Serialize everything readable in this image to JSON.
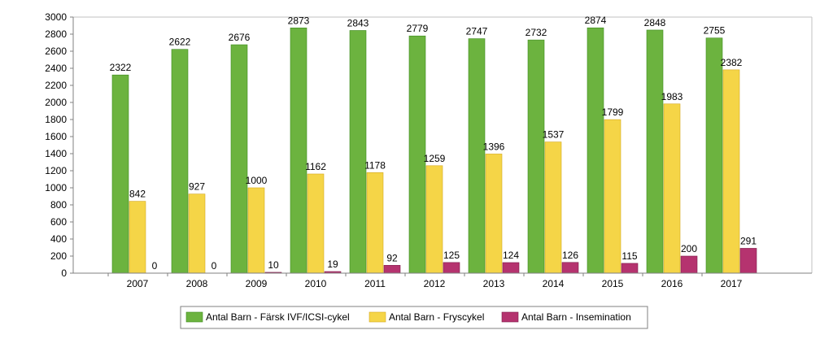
{
  "chart_data": {
    "type": "bar",
    "categories": [
      "2007",
      "2008",
      "2009",
      "2010",
      "2011",
      "2012",
      "2013",
      "2014",
      "2015",
      "2016",
      "2017"
    ],
    "series": [
      {
        "name": "Antal Barn - Färsk IVF/ICSI-cykel",
        "color": "#6cb33f",
        "stroke": "#3e8a1e",
        "values": [
          2322,
          2622,
          2676,
          2873,
          2843,
          2779,
          2747,
          2732,
          2874,
          2848,
          2755
        ]
      },
      {
        "name": "Antal Barn - Fryscykel",
        "color": "#f5d547",
        "stroke": "#d4a820",
        "values": [
          842,
          927,
          1000,
          1162,
          1178,
          1259,
          1396,
          1537,
          1799,
          1983,
          2382
        ]
      },
      {
        "name": "Antal Barn - Insemination",
        "color": "#b5336f",
        "stroke": "#7e1d4a",
        "values": [
          0,
          0,
          10,
          19,
          92,
          125,
          124,
          126,
          115,
          200,
          291
        ]
      }
    ],
    "ylim": [
      0,
      3000
    ],
    "yticks": [
      0,
      200,
      400,
      600,
      800,
      1000,
      1200,
      1400,
      1600,
      1800,
      2000,
      2200,
      2400,
      2600,
      2800,
      3000
    ],
    "grid": false,
    "legend": "bottom"
  }
}
